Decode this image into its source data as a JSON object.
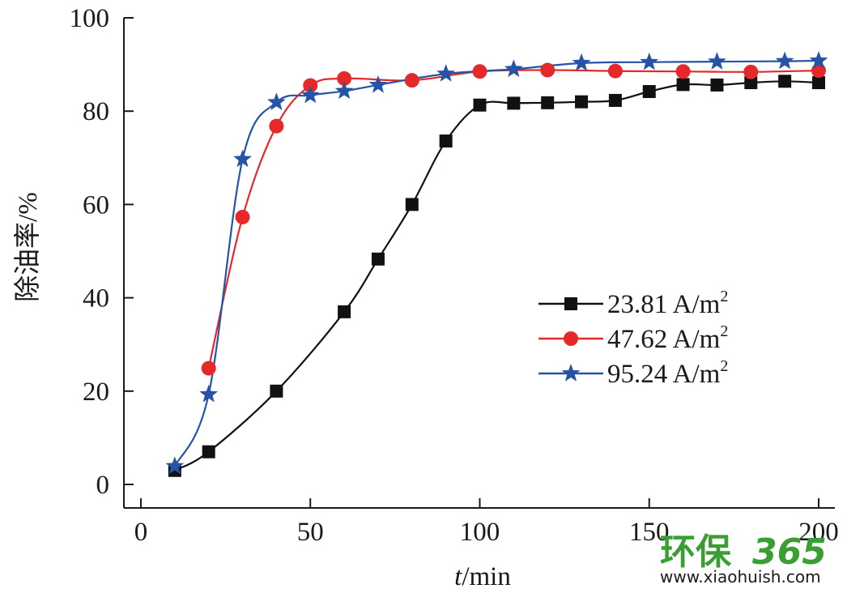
{
  "chart_data": {
    "type": "line",
    "xlabel_italic": "t",
    "xlabel_rest": "/min",
    "ylabel": "除油率/%",
    "xlim": [
      0,
      200
    ],
    "ylim": [
      0,
      100
    ],
    "xticks": [
      0,
      50,
      100,
      150,
      200
    ],
    "yticks": [
      0,
      20,
      40,
      60,
      80,
      100
    ],
    "grid": false,
    "legend_position": "right-middle",
    "series": [
      {
        "name": "23.81 A/m",
        "name_sup": "2",
        "color": "#111111",
        "marker": "square",
        "x": [
          10,
          20,
          40,
          60,
          70,
          80,
          90,
          100,
          110,
          120,
          130,
          140,
          150,
          160,
          170,
          180,
          190,
          200
        ],
        "y": [
          3,
          7,
          20,
          37,
          48.3,
          60,
          73.6,
          81.3,
          81.7,
          81.8,
          82,
          82.3,
          84.2,
          85.7,
          85.6,
          86.1,
          86.4,
          86.1
        ]
      },
      {
        "name": "47.62 A/m",
        "name_sup": "2",
        "color": "#e5282a",
        "marker": "circle",
        "x": [
          20,
          30,
          40,
          50,
          60,
          80,
          100,
          120,
          140,
          160,
          180,
          200
        ],
        "y": [
          24.9,
          57.3,
          76.8,
          85.5,
          87,
          86.6,
          88.5,
          88.8,
          88.6,
          88.5,
          88.4,
          88.7
        ]
      },
      {
        "name": "95.24 A/m",
        "name_sup": "2",
        "color": "#2554a6",
        "marker": "star",
        "x": [
          10,
          20,
          30,
          40,
          50,
          60,
          70,
          90,
          110,
          130,
          150,
          170,
          190,
          200
        ],
        "y": [
          3.9,
          19.3,
          69.7,
          81.9,
          83.4,
          84.3,
          85.6,
          88,
          89,
          90.3,
          90.5,
          90.6,
          90.7,
          90.8
        ]
      }
    ]
  },
  "watermark": {
    "brand": "环保",
    "number": "365",
    "url": "www.xiaohuish.com"
  }
}
